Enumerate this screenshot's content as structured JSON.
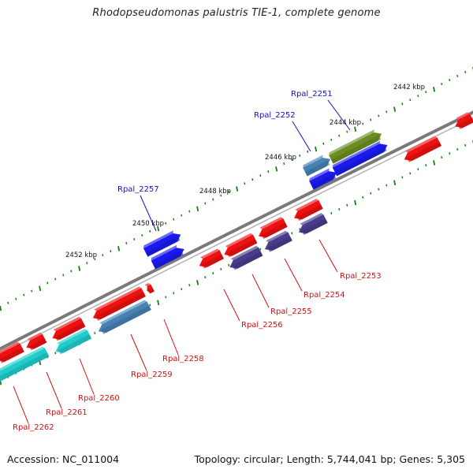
{
  "title": "Rhodopseudomonas palustris TIE-1, complete genome",
  "footer": {
    "accession": "Accession: NC_011004",
    "summary": "Topology: circular; Length: 5,744,041 bp; Genes: 5,305"
  },
  "colors": {
    "backbone": "#7a7a7a",
    "tick": "#1a7a1a",
    "forward_label": "#1010c8",
    "reverse_label": "#d01010",
    "red": "#ee1111",
    "blue": "#1a1aee",
    "olive": "#6b8e23",
    "steel": "#4682b4",
    "slate": "#483d8b",
    "cyan": "#22cccc"
  },
  "kbp_labels": [
    "2442 kbp",
    "2444 kbp",
    "2446 kbp",
    "2448 kbp",
    "2450 kbp",
    "2452 kbp"
  ],
  "genes": {
    "forward": [
      {
        "name": "Rpal_2251",
        "color": "olive"
      },
      {
        "name": "Rpal_2252",
        "color": "steel"
      },
      {
        "name": "Rpal_2257",
        "color": "blue"
      }
    ],
    "reverse": [
      {
        "name": "Rpal_2253",
        "color": "slate"
      },
      {
        "name": "Rpal_2254",
        "color": "red"
      },
      {
        "name": "Rpal_2255",
        "color": "slate"
      },
      {
        "name": "Rpal_2256",
        "color": "red"
      },
      {
        "name": "Rpal_2258",
        "color": "red"
      },
      {
        "name": "Rpal_2259",
        "color": "steel"
      },
      {
        "name": "Rpal_2260",
        "color": "cyan"
      },
      {
        "name": "Rpal_2261",
        "color": "red"
      },
      {
        "name": "Rpal_2262",
        "color": "cyan"
      }
    ]
  }
}
